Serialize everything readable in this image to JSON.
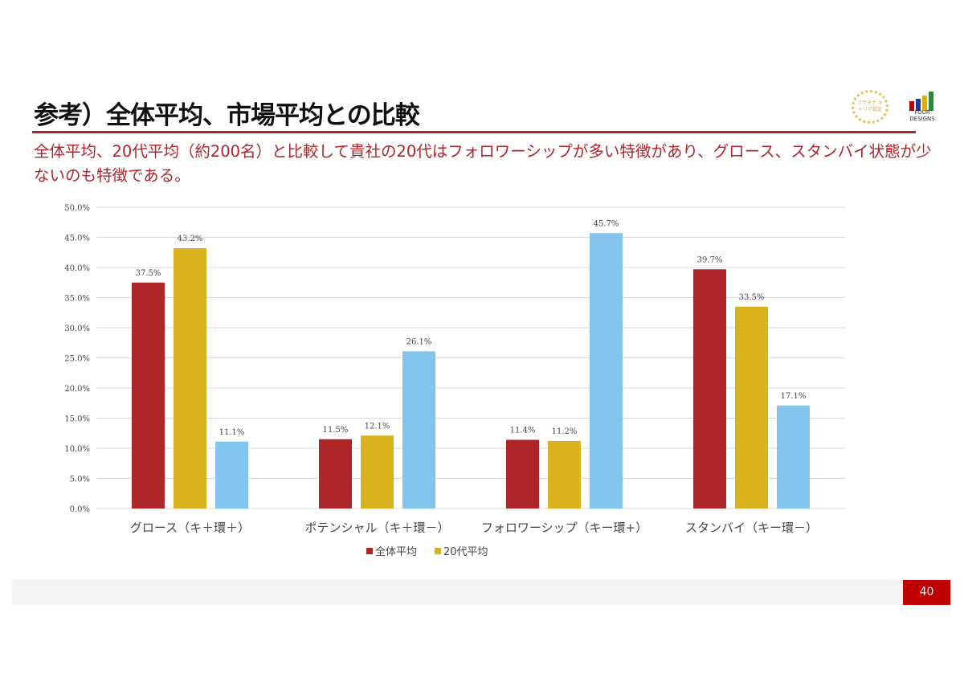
{
  "header": {
    "title": "参考）全体平均、市場平均との比較",
    "subtitle": "全体平均、20代平均（約200名）と比較して貴社の20代はフォロワーシップが多い特徴があり、グロース、スタンバイ状態が少ないのも特徴である。",
    "award_text": "プラチナ キャリア認定",
    "logo_text": "FOUR DESIGNS"
  },
  "page_number": "40",
  "colors": {
    "s1": "#ad2629",
    "s2": "#d9b21d",
    "s3": "#83c5ec",
    "accent": "#a52a2a"
  },
  "chart_data": {
    "type": "bar",
    "categories": [
      "グロース（キ＋環＋）",
      "ポテンシャル（キ＋環－）",
      "フォロワーシップ（キー環+）",
      "スタンバイ（キー環－）"
    ],
    "series": [
      {
        "name": "全体平均",
        "values": [
          37.5,
          11.5,
          11.4,
          39.7
        ]
      },
      {
        "name": "20代平均",
        "values": [
          43.2,
          12.1,
          11.2,
          33.5
        ]
      },
      {
        "name": "",
        "values": [
          11.1,
          26.1,
          45.7,
          17.1
        ]
      }
    ],
    "value_labels": [
      [
        "37.5%",
        "11.5%",
        "11.4%",
        "39.7%"
      ],
      [
        "43.2%",
        "12.1%",
        "11.2%",
        "33.5%"
      ],
      [
        "11.1%",
        "26.1%",
        "45.7%",
        "17.1%"
      ]
    ],
    "yticks": [
      "0.0%",
      "5.0%",
      "10.0%",
      "15.0%",
      "20.0%",
      "25.0%",
      "30.0%",
      "35.0%",
      "40.0%",
      "45.0%",
      "50.0%"
    ],
    "ylim": [
      0,
      50
    ],
    "grid": true,
    "legend": "bottom"
  }
}
